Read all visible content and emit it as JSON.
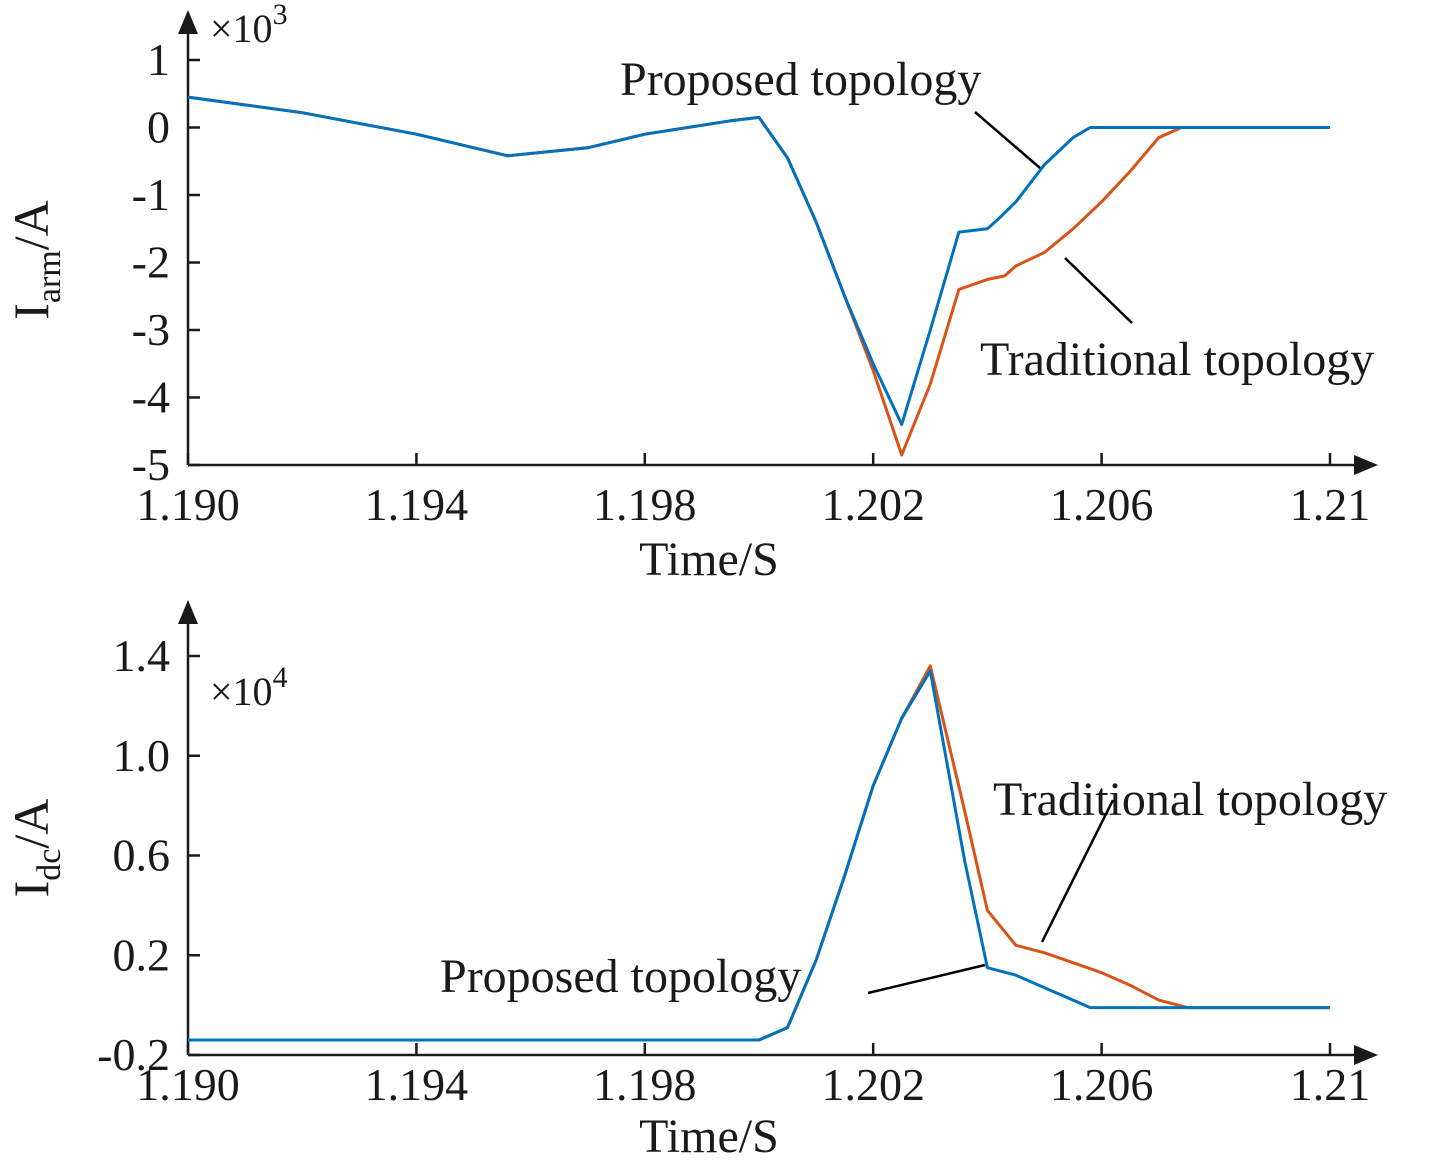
{
  "chart_data": [
    {
      "type": "line",
      "ylabel_main": "I",
      "ylabel_sub": "arm",
      "ylabel_unit": "/A",
      "xlabel": "Time/S",
      "exponent_base": "×10",
      "exponent_power": "3",
      "xlim": [
        1.19,
        1.21
      ],
      "ylim": [
        -5,
        1
      ],
      "x_ticks": [
        1.19,
        1.194,
        1.198,
        1.202,
        1.206,
        1.21
      ],
      "x_tick_labels": [
        "1.190",
        "1.194",
        "1.198",
        "1.202",
        "1.206",
        "1.21"
      ],
      "y_ticks": [
        1,
        0,
        -1,
        -2,
        -3,
        -4,
        -5
      ],
      "y_tick_labels": [
        "1",
        "0",
        "-1",
        "-2",
        "-3",
        "-4",
        "-5"
      ],
      "grid": false,
      "series": [
        {
          "name": "Traditional topology",
          "color": "#D95319",
          "x": [
            1.19,
            1.192,
            1.194,
            1.1956,
            1.197,
            1.198,
            1.1995,
            1.2,
            1.2005,
            1.201,
            1.2015,
            1.202,
            1.2025,
            1.203,
            1.2035,
            1.204,
            1.2043,
            1.2045,
            1.205,
            1.2055,
            1.206,
            1.2065,
            1.207,
            1.2074,
            1.208,
            1.21
          ],
          "values": [
            0.45,
            0.22,
            -0.1,
            -0.42,
            -0.3,
            -0.1,
            0.1,
            0.15,
            -0.45,
            -1.4,
            -2.5,
            -3.6,
            -4.85,
            -3.8,
            -2.4,
            -2.25,
            -2.2,
            -2.05,
            -1.85,
            -1.5,
            -1.1,
            -0.65,
            -0.15,
            0.0,
            0.0,
            0.0
          ]
        },
        {
          "name": "Proposed topology",
          "color": "#0072BD",
          "x": [
            1.19,
            1.192,
            1.194,
            1.1956,
            1.197,
            1.198,
            1.1995,
            1.2,
            1.2005,
            1.201,
            1.2015,
            1.202,
            1.2025,
            1.203,
            1.2035,
            1.204,
            1.2042,
            1.2045,
            1.205,
            1.2055,
            1.2058,
            1.206,
            1.208,
            1.21
          ],
          "values": [
            0.45,
            0.22,
            -0.1,
            -0.42,
            -0.3,
            -0.1,
            0.1,
            0.15,
            -0.45,
            -1.4,
            -2.5,
            -3.5,
            -4.4,
            -3.0,
            -1.55,
            -1.5,
            -1.35,
            -1.1,
            -0.55,
            -0.15,
            0.0,
            0.0,
            0.0,
            0.0
          ]
        }
      ],
      "annotations": [
        {
          "text": "Proposed topology",
          "target_series": "Proposed topology"
        },
        {
          "text": "Traditional topology",
          "target_series": "Traditional topology"
        }
      ]
    },
    {
      "type": "line",
      "ylabel_main": "I",
      "ylabel_sub": "dc",
      "ylabel_unit": "/A",
      "xlabel": "Time/S",
      "exponent_base": "×10",
      "exponent_power": "4",
      "xlim": [
        1.19,
        1.21
      ],
      "ylim": [
        -0.2,
        1.6
      ],
      "x_ticks": [
        1.19,
        1.194,
        1.198,
        1.202,
        1.206,
        1.21
      ],
      "x_tick_labels": [
        "1.190",
        "1.194",
        "1.198",
        "1.202",
        "1.206",
        "1.21"
      ],
      "y_ticks": [
        1.4,
        1.0,
        0.6,
        0.2,
        -0.2
      ],
      "y_tick_labels": [
        "1.4",
        "1.0",
        "0.6",
        "0.2",
        "-0.2"
      ],
      "grid": false,
      "series": [
        {
          "name": "Traditional topology",
          "color": "#D95319",
          "x": [
            1.19,
            1.198,
            1.2,
            1.2005,
            1.201,
            1.2015,
            1.202,
            1.2025,
            1.203,
            1.2036,
            1.204,
            1.2045,
            1.205,
            1.2055,
            1.206,
            1.2065,
            1.207,
            1.2075,
            1.21
          ],
          "values": [
            -0.14,
            -0.14,
            -0.14,
            -0.09,
            0.18,
            0.52,
            0.88,
            1.15,
            1.36,
            0.78,
            0.38,
            0.24,
            0.21,
            0.17,
            0.13,
            0.08,
            0.02,
            -0.01,
            -0.01
          ]
        },
        {
          "name": "Proposed topology",
          "color": "#0072BD",
          "x": [
            1.19,
            1.198,
            1.2,
            1.2005,
            1.201,
            1.2015,
            1.202,
            1.2025,
            1.203,
            1.2036,
            1.204,
            1.2045,
            1.205,
            1.2055,
            1.2058,
            1.206,
            1.208,
            1.21
          ],
          "values": [
            -0.14,
            -0.14,
            -0.14,
            -0.09,
            0.18,
            0.52,
            0.88,
            1.15,
            1.34,
            0.58,
            0.15,
            0.12,
            0.07,
            0.02,
            -0.01,
            -0.01,
            -0.01,
            -0.01
          ]
        }
      ],
      "annotations": [
        {
          "text": "Traditional topology",
          "target_series": "Traditional topology"
        },
        {
          "text": "Proposed topology",
          "target_series": "Proposed topology"
        }
      ]
    }
  ]
}
